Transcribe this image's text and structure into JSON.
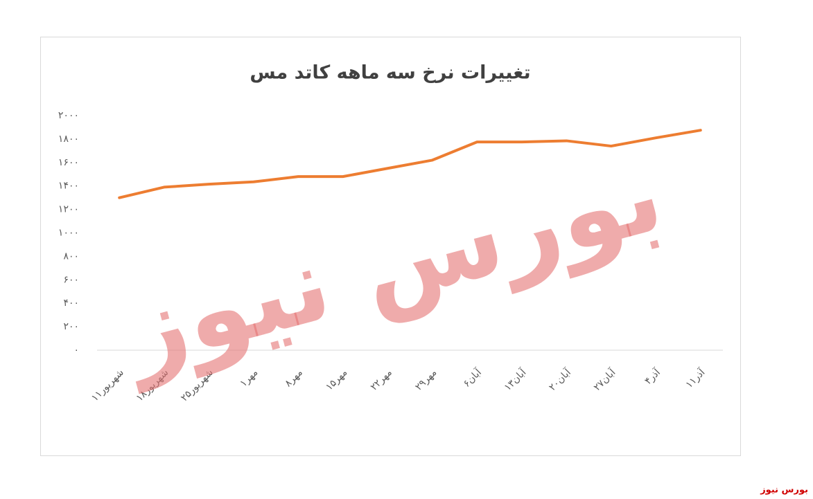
{
  "chart_data": {
    "type": "line",
    "title": "تغییرات نرخ سه ماهه کاتد مس",
    "categories": [
      "۱۱شهریور",
      "۱۸شهریور",
      "۲۵شهریور",
      "۱مهر",
      "۸مهر",
      "۱۵مهر",
      "۲۲مهر",
      "۲۹مهر",
      "۶آبان",
      "۱۳آبان",
      "۲۰آبان",
      "۲۷آبان",
      "۴آذر",
      "۱۱آذر"
    ],
    "values": [
      1300,
      1390,
      1415,
      1435,
      1480,
      1480,
      1550,
      1620,
      1775,
      1775,
      1785,
      1740,
      1810,
      1875
    ],
    "color": "#ed7d31",
    "ylim": [
      0,
      2000
    ],
    "yticks": [
      {
        "value": 0,
        "label": "۰"
      },
      {
        "value": 200,
        "label": "۲۰۰"
      },
      {
        "value": 400,
        "label": "۴۰۰"
      },
      {
        "value": 600,
        "label": "۶۰۰"
      },
      {
        "value": 800,
        "label": "۸۰۰"
      },
      {
        "value": 1000,
        "label": "۱۰۰۰"
      },
      {
        "value": 1200,
        "label": "۱۲۰۰"
      },
      {
        "value": 1400,
        "label": "۱۴۰۰"
      },
      {
        "value": 1600,
        "label": "۱۶۰۰"
      },
      {
        "value": 1800,
        "label": "۱۸۰۰"
      },
      {
        "value": 2000,
        "label": "۲۰۰۰"
      }
    ],
    "grid": false,
    "watermark": "بورس نیوز",
    "source": "بورس نیوز"
  }
}
